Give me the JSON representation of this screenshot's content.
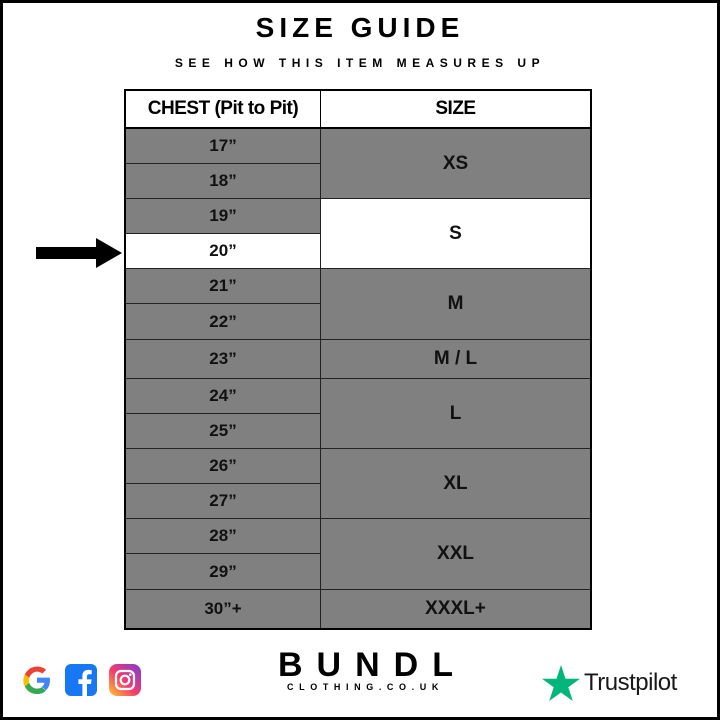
{
  "title": "SIZE GUIDE",
  "subtitle": "SEE HOW THIS ITEM MEASURES UP",
  "table": {
    "headers": [
      "CHEST (Pit to Pit)",
      "SIZE"
    ],
    "chest": [
      "17”",
      "18”",
      "19”",
      "20”",
      "21”",
      "22”",
      "23”",
      "24”",
      "25”",
      "26”",
      "27”",
      "28”",
      "29”",
      "30”+"
    ],
    "highlighted_chest": "20”",
    "sizes": [
      {
        "label": "XS",
        "rows": [
          "17”",
          "18”"
        ]
      },
      {
        "label": "S",
        "rows": [
          "19”",
          "20”"
        ]
      },
      {
        "label": "M",
        "rows": [
          "21”",
          "22”"
        ]
      },
      {
        "label": "M / L",
        "rows": [
          "23”"
        ]
      },
      {
        "label": "L",
        "rows": [
          "24”",
          "25”"
        ]
      },
      {
        "label": "XL",
        "rows": [
          "26”",
          "27”"
        ]
      },
      {
        "label": "XXL",
        "rows": [
          "28”",
          "29”"
        ]
      },
      {
        "label": "XXXL+",
        "rows": [
          "30”+"
        ]
      }
    ],
    "highlighted_size": "S",
    "colors": {
      "row": "#808080",
      "highlight": "#ffffff"
    }
  },
  "brand": {
    "name": "BUNDL",
    "domain": "CLOTHING.CO.UK"
  },
  "social_icons": [
    "google-icon",
    "facebook-icon",
    "instagram-icon"
  ],
  "trustpilot": {
    "label": "Trustpilot",
    "color": "#00b67a"
  }
}
